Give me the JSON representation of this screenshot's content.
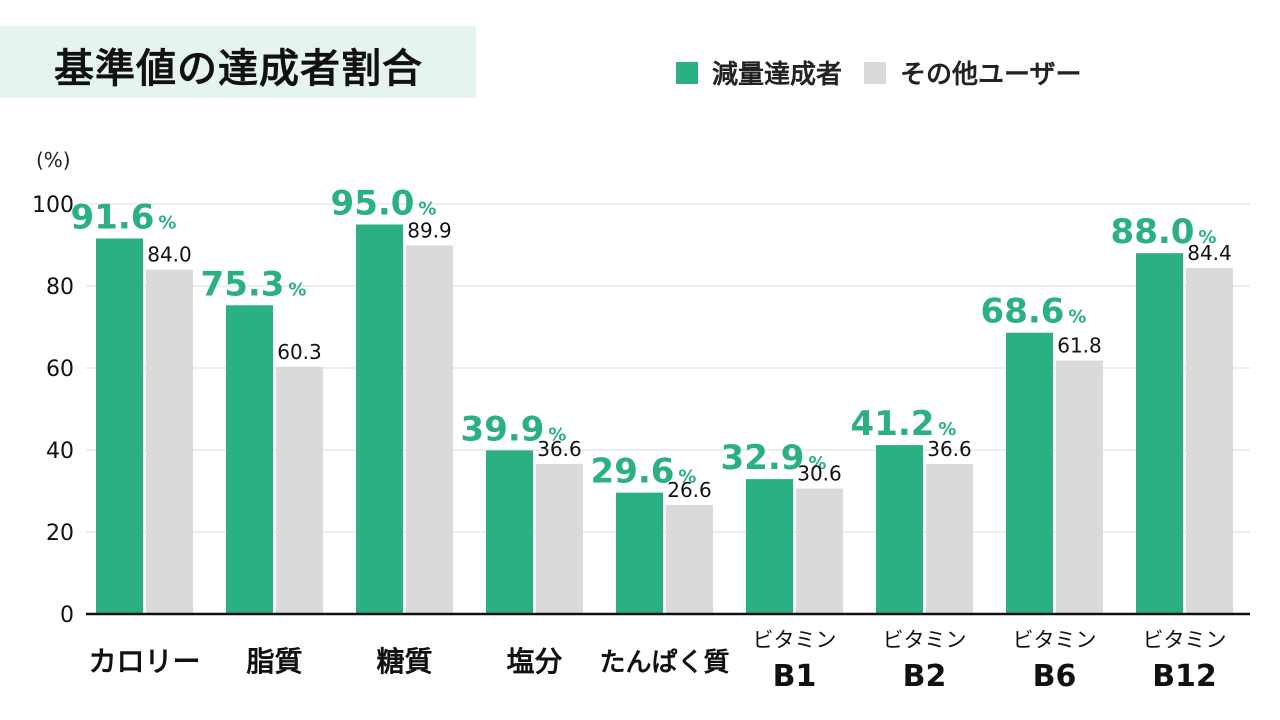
{
  "title": "基準値の達成者割合",
  "colors": {
    "primary": "#2bb084",
    "secondary": "#dadada",
    "title_bg": "#e6f4f1"
  },
  "chart_data": {
    "type": "bar",
    "ylabel": "(%)",
    "ylim": [
      0,
      100
    ],
    "yticks": [
      0,
      20,
      40,
      60,
      80,
      100
    ],
    "grid": true,
    "legend_position": "top-right",
    "categories": [
      [
        "カロリー"
      ],
      [
        "脂質"
      ],
      [
        "糖質"
      ],
      [
        "塩分"
      ],
      [
        "たんぱく質"
      ],
      [
        "ビタミン",
        "B1"
      ],
      [
        "ビタミン",
        "B2"
      ],
      [
        "ビタミン",
        "B6"
      ],
      [
        "ビタミン",
        "B12"
      ]
    ],
    "series": [
      {
        "name": "減量達成者",
        "values": [
          91.6,
          75.3,
          95.0,
          39.9,
          29.6,
          32.9,
          41.2,
          68.6,
          88.0
        ],
        "labels": [
          "91.6",
          "75.3",
          "95.0",
          "39.9",
          "29.6",
          "32.9",
          "41.2",
          "68.6",
          "88.0"
        ],
        "label_unit": "%"
      },
      {
        "name": "その他ユーザー",
        "values": [
          84.0,
          60.3,
          89.9,
          36.6,
          26.6,
          30.6,
          36.6,
          61.8,
          84.4
        ],
        "labels": [
          "84.0",
          "60.3",
          "89.9",
          "36.6",
          "26.6",
          "30.6",
          "36.6",
          "61.8",
          "84.4"
        ]
      }
    ]
  }
}
